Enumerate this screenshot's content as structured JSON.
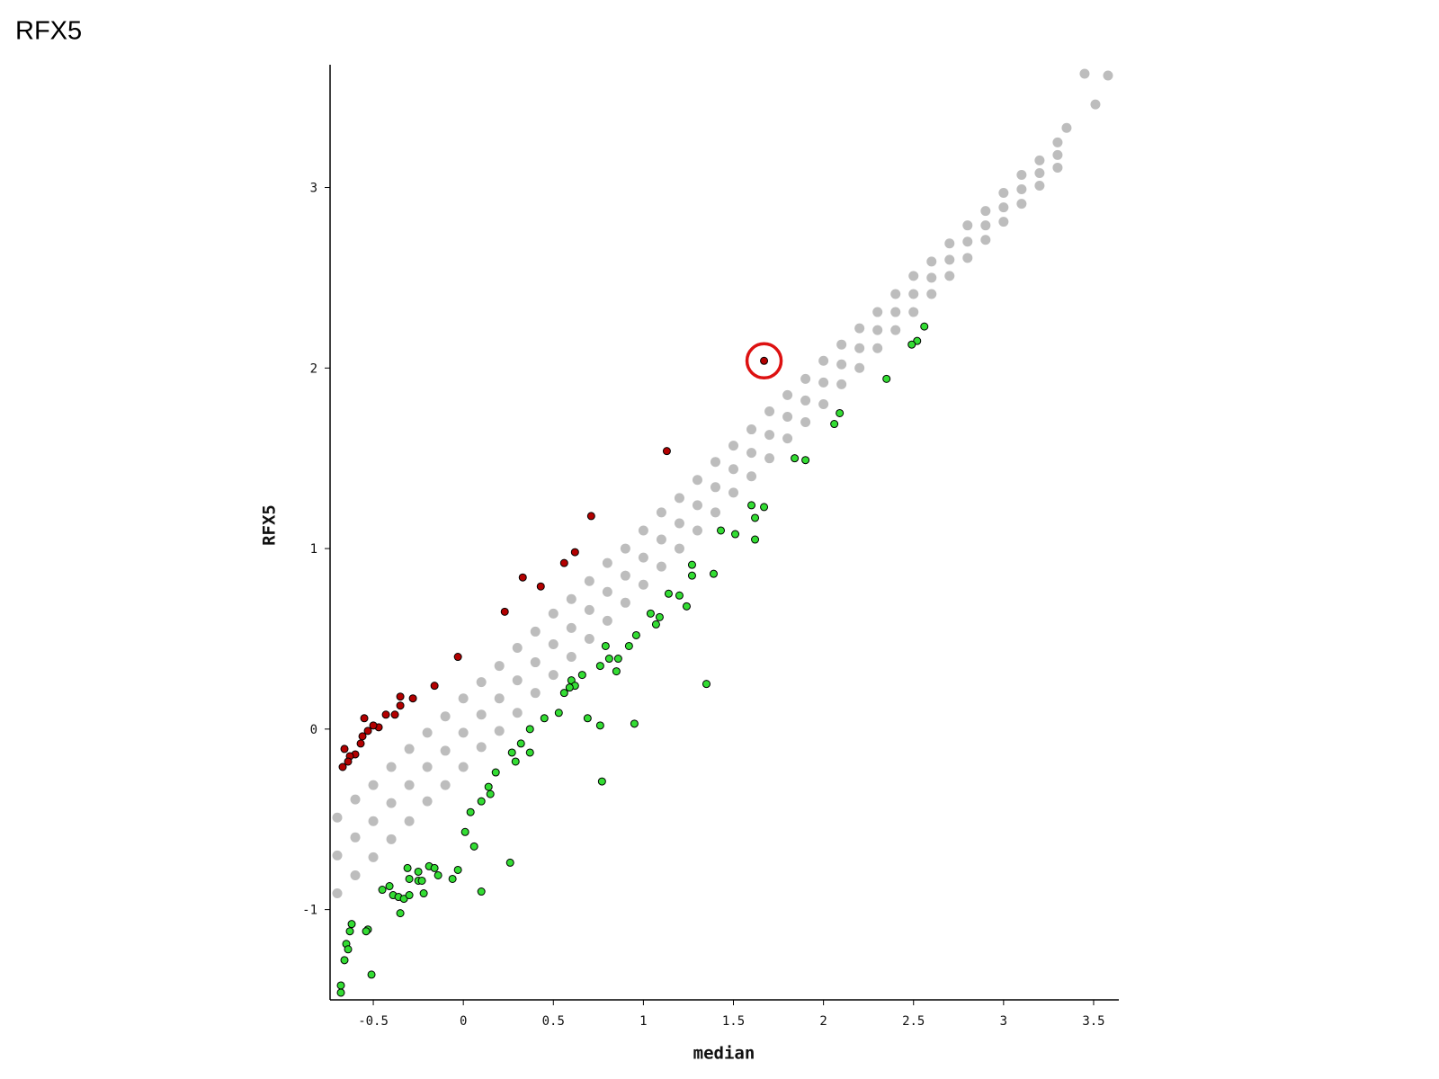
{
  "chart_data": {
    "type": "scatter",
    "title": "RFX5",
    "x_label": "median",
    "y_label": "RFX5",
    "xlim": [
      -0.74,
      3.64
    ],
    "ylim": [
      -1.5,
      3.68
    ],
    "xticks": [
      -0.5,
      0,
      0.5,
      1,
      1.5,
      2,
      2.5,
      3,
      3.5
    ],
    "yticks": [
      -1,
      0,
      1,
      2,
      3
    ],
    "grid": false,
    "highlight": {
      "series": 1,
      "index": 0
    },
    "series": [
      {
        "color": "#bdbdbd",
        "x": [
          -0.7,
          -0.7,
          -0.7,
          -0.6,
          -0.6,
          -0.6,
          -0.5,
          -0.5,
          -0.5,
          -0.4,
          -0.4,
          -0.4,
          -0.3,
          -0.3,
          -0.3,
          -0.2,
          -0.2,
          -0.2,
          -0.1,
          -0.1,
          -0.1,
          0,
          0,
          0,
          0.1,
          0.1,
          0.1,
          0.2,
          0.2,
          0.2,
          0.3,
          0.3,
          0.3,
          0.4,
          0.4,
          0.4,
          0.5,
          0.5,
          0.5,
          0.6,
          0.6,
          0.6,
          0.7,
          0.7,
          0.7,
          0.8,
          0.8,
          0.8,
          0.9,
          0.9,
          0.9,
          1,
          1,
          1,
          1.1,
          1.1,
          1.1,
          1.2,
          1.2,
          1.2,
          1.3,
          1.3,
          1.3,
          1.4,
          1.4,
          1.4,
          1.5,
          1.5,
          1.5,
          1.6,
          1.6,
          1.6,
          1.7,
          1.7,
          1.7,
          1.8,
          1.8,
          1.8,
          1.9,
          1.9,
          1.9,
          2,
          2,
          2,
          2.1,
          2.1,
          2.1,
          2.2,
          2.2,
          2.2,
          2.3,
          2.3,
          2.3,
          2.4,
          2.4,
          2.4,
          2.5,
          2.5,
          2.5,
          2.6,
          2.6,
          2.6,
          2.7,
          2.7,
          2.7,
          2.8,
          2.8,
          2.8,
          2.9,
          2.9,
          2.9,
          3,
          3,
          3,
          3.1,
          3.1,
          3.1,
          3.2,
          3.2,
          3.2,
          3.3,
          3.3,
          3.3,
          3.35,
          3.45,
          3.58,
          3.51
        ],
        "values": [
          -0.91,
          -0.7,
          -0.49,
          -0.81,
          -0.6,
          -0.39,
          -0.71,
          -0.51,
          -0.31,
          -0.61,
          -0.41,
          -0.21,
          -0.51,
          -0.31,
          -0.11,
          -0.4,
          -0.21,
          -0.02,
          -0.31,
          -0.12,
          0.07,
          -0.21,
          -0.02,
          0.17,
          -0.1,
          0.08,
          0.26,
          -0.01,
          0.17,
          0.35,
          0.09,
          0.27,
          0.45,
          0.2,
          0.37,
          0.54,
          0.3,
          0.47,
          0.64,
          0.4,
          0.56,
          0.72,
          0.5,
          0.66,
          0.82,
          0.6,
          0.76,
          0.92,
          0.7,
          0.85,
          1.0,
          0.8,
          0.95,
          1.1,
          0.9,
          1.05,
          1.2,
          1.0,
          1.14,
          1.28,
          1.1,
          1.24,
          1.38,
          1.2,
          1.34,
          1.48,
          1.31,
          1.44,
          1.57,
          1.4,
          1.53,
          1.66,
          1.5,
          1.63,
          1.76,
          1.61,
          1.73,
          1.85,
          1.7,
          1.82,
          1.94,
          1.8,
          1.92,
          2.04,
          1.91,
          2.02,
          2.13,
          2.0,
          2.11,
          2.22,
          2.11,
          2.21,
          2.31,
          2.21,
          2.31,
          2.41,
          2.31,
          2.41,
          2.51,
          2.41,
          2.5,
          2.59,
          2.51,
          2.6,
          2.69,
          2.61,
          2.7,
          2.79,
          2.71,
          2.79,
          2.87,
          2.81,
          2.89,
          2.97,
          2.91,
          2.99,
          3.07,
          3.01,
          3.08,
          3.15,
          3.11,
          3.18,
          3.25,
          3.33,
          3.63,
          3.62,
          3.46
        ]
      },
      {
        "color": "#b30000",
        "x": [
          1.67,
          1.13,
          0.71,
          0.62,
          0.56,
          0.33,
          0.43,
          0.23,
          -0.03,
          -0.16,
          -0.28,
          -0.35,
          -0.35,
          -0.38,
          -0.43,
          -0.47,
          -0.5,
          -0.55,
          -0.53,
          -0.56,
          -0.57,
          -0.6,
          -0.63,
          -0.66,
          -0.64,
          -0.67
        ],
        "values": [
          2.04,
          1.54,
          1.18,
          0.98,
          0.92,
          0.84,
          0.79,
          0.65,
          0.4,
          0.24,
          0.17,
          0.18,
          0.13,
          0.08,
          0.08,
          0.01,
          0.02,
          0.06,
          -0.01,
          -0.04,
          -0.08,
          -0.14,
          -0.15,
          -0.11,
          -0.18,
          -0.21
        ]
      },
      {
        "color": "#33dd33",
        "x": [
          2.56,
          2.52,
          2.49,
          2.35,
          2.09,
          2.06,
          1.84,
          1.9,
          1.6,
          1.67,
          1.62,
          1.62,
          1.43,
          1.51,
          1.39,
          1.27,
          1.27,
          1.14,
          1.2,
          1.24,
          1.04,
          1.09,
          1.07,
          0.96,
          0.92,
          0.79,
          0.86,
          0.81,
          0.76,
          0.85,
          0.66,
          0.6,
          0.62,
          0.59,
          0.56,
          0.53,
          0.45,
          0.37,
          1.35,
          0.69,
          0.76,
          0.95,
          0.32,
          0.27,
          0.37,
          0.29,
          0.18,
          0.77,
          0.14,
          0.15,
          0.1,
          0.04,
          0.01,
          0.06,
          0.26,
          -0.03,
          -0.06,
          0.1,
          -0.19,
          -0.16,
          -0.14,
          -0.25,
          -0.31,
          -0.3,
          -0.25,
          -0.23,
          -0.22,
          -0.41,
          -0.45,
          -0.39,
          -0.36,
          -0.33,
          -0.3,
          -0.35,
          -0.62,
          -0.63,
          -0.53,
          -0.54,
          -0.65,
          -0.64,
          -0.66,
          -0.51,
          -0.68,
          -0.68
        ],
        "values": [
          2.23,
          2.15,
          2.13,
          1.94,
          1.75,
          1.69,
          1.5,
          1.49,
          1.24,
          1.23,
          1.17,
          1.05,
          1.1,
          1.08,
          0.86,
          0.91,
          0.85,
          0.75,
          0.74,
          0.68,
          0.64,
          0.62,
          0.58,
          0.52,
          0.46,
          0.46,
          0.39,
          0.39,
          0.35,
          0.32,
          0.3,
          0.27,
          0.24,
          0.23,
          0.2,
          0.09,
          0.06,
          0.0,
          0.25,
          0.06,
          0.02,
          0.03,
          -0.08,
          -0.13,
          -0.13,
          -0.18,
          -0.24,
          -0.29,
          -0.32,
          -0.36,
          -0.4,
          -0.46,
          -0.57,
          -0.65,
          -0.74,
          -0.78,
          -0.83,
          -0.9,
          -0.76,
          -0.77,
          -0.81,
          -0.79,
          -0.77,
          -0.83,
          -0.84,
          -0.84,
          -0.91,
          -0.87,
          -0.89,
          -0.92,
          -0.93,
          -0.94,
          -0.92,
          -1.02,
          -1.08,
          -1.12,
          -1.11,
          -1.12,
          -1.19,
          -1.22,
          -1.28,
          -1.36,
          -1.42,
          -1.46
        ]
      }
    ]
  }
}
